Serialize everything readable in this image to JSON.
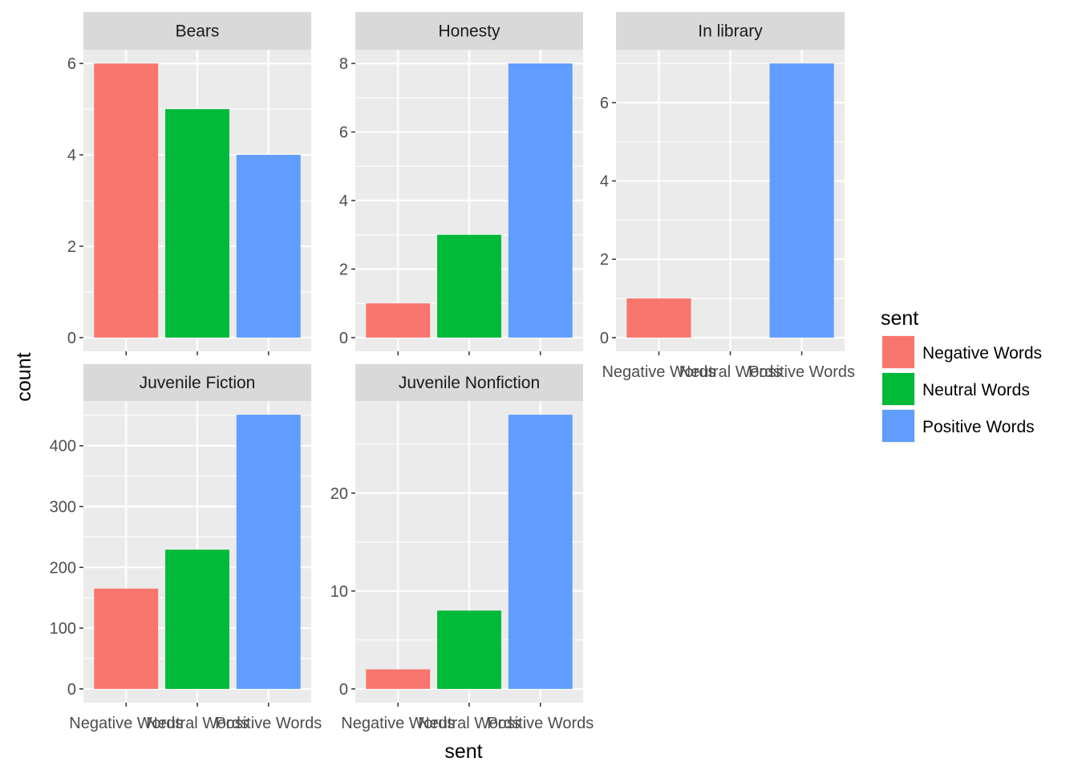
{
  "chart_data": {
    "type": "bar",
    "categories": [
      "Negative Words",
      "Neutral Words",
      "Positive Words"
    ],
    "xlabel": "sent",
    "ylabel": "count",
    "legend": {
      "title": "sent",
      "position": "right",
      "entries": [
        "Negative Words",
        "Neutral Words",
        "Positive Words"
      ]
    },
    "colors": {
      "Negative Words": "#F8766D",
      "Neutral Words": "#00BA38",
      "Positive Words": "#619CFF",
      "panel_bg": "#EBEBEB",
      "strip_bg": "#D9D9D9",
      "grid": "#FFFFFF"
    },
    "grid": true,
    "facets": [
      {
        "title": "Bears",
        "values": [
          6,
          5,
          4
        ],
        "ylim": [
          -0.3,
          6.3
        ],
        "yticks": [
          0,
          2,
          4,
          6
        ],
        "show_x_labels": false
      },
      {
        "title": "Honesty",
        "values": [
          1,
          3,
          8
        ],
        "ylim": [
          -0.4,
          8.4
        ],
        "yticks": [
          0,
          2,
          4,
          6,
          8
        ],
        "show_x_labels": false
      },
      {
        "title": "In library",
        "values": [
          1,
          0,
          7
        ],
        "ylim": [
          -0.35,
          7.35
        ],
        "yticks": [
          0,
          2,
          4,
          6
        ],
        "show_x_labels": true
      },
      {
        "title": "Juvenile Fiction",
        "values": [
          165,
          229,
          451
        ],
        "ylim": [
          -22.55,
          473.55
        ],
        "yticks": [
          0,
          100,
          200,
          300,
          400
        ],
        "show_x_labels": true
      },
      {
        "title": "Juvenile Nonfiction",
        "values": [
          2,
          8,
          28
        ],
        "ylim": [
          -1.4,
          29.4
        ],
        "yticks": [
          0,
          10,
          20
        ],
        "show_x_labels": true
      }
    ]
  }
}
